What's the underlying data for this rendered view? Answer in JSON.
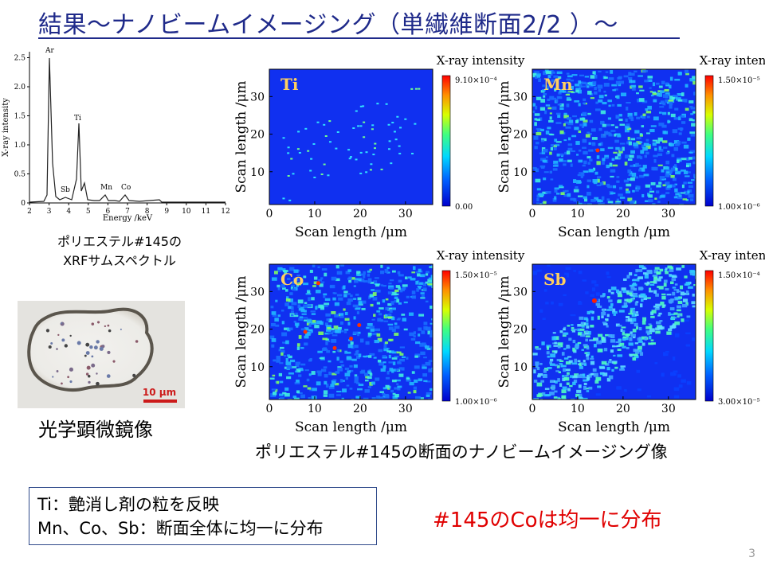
{
  "title": "結果～ナノビームイメージング（単繊維断面2/2 ）～",
  "spectrum": {
    "ylabel": "X-ray intensity",
    "xlabel": "Energy /keV",
    "xticks": [
      "2",
      "3",
      "4",
      "5",
      "6",
      "7",
      "8",
      "9",
      "10",
      "11",
      "12"
    ],
    "yticks": [
      "0",
      "0.5",
      "1.0",
      "1.5",
      "2.0",
      "2.5"
    ],
    "peaks": [
      "Ar",
      "Sb",
      "Ti",
      "Mn",
      "Co"
    ],
    "caption_line1": "ポリエステル#145の",
    "caption_line2": "XRFサムスペクトル"
  },
  "micrograph": {
    "scalebar": "10 μm",
    "caption": "光学顕微鏡像"
  },
  "maps": [
    {
      "element": "Ti",
      "cb_max": "9.10×10⁻⁴",
      "cb_min": "0.00",
      "pattern": "sparse",
      "colorbar_title": "X-ray intensity"
    },
    {
      "element": "Mn",
      "cb_max": "1.50×10⁻⁵",
      "cb_min": "1.00×10⁻⁶",
      "pattern": "noisy",
      "colorbar_title": "X-ray intensity"
    },
    {
      "element": "Co",
      "cb_max": "1.50×10⁻⁵",
      "cb_min": "1.00×10⁻⁶",
      "pattern": "medium",
      "colorbar_title": "X-ray intensity"
    },
    {
      "element": "Sb",
      "cb_max": "1.50×10⁻⁴",
      "cb_min": "3.00×10⁻⁵",
      "pattern": "band",
      "colorbar_title": "X-ray intensity"
    }
  ],
  "map_axes": {
    "xlabel": "Scan length /μm",
    "ylabel": "Scan length /μm",
    "xticks": [
      "0",
      "10",
      "20",
      "30"
    ],
    "yticks": [
      "10",
      "20",
      "30"
    ]
  },
  "maps_caption": "ポリエステル#145の断面のナノビームイメージング像",
  "notes": [
    "Ti：艶消し剤の粒を反映",
    "Mn、Co、Sb：断面全体に均一に分布"
  ],
  "conclusion": "#145のCoは均一に分布",
  "page_number": "3"
}
